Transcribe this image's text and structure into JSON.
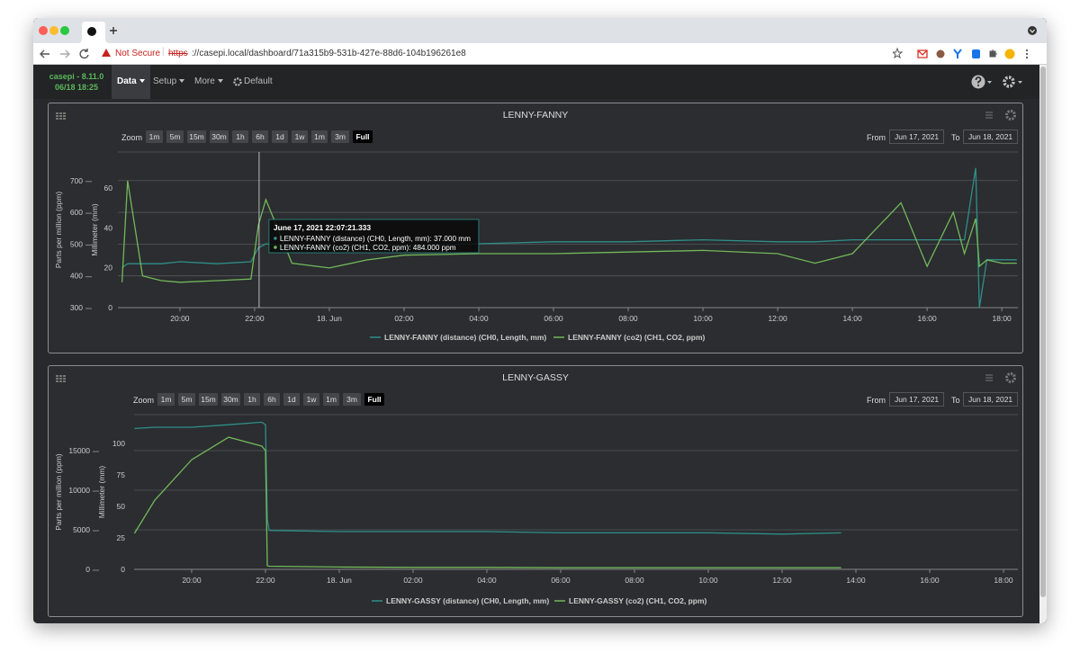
{
  "browser": {
    "not_secure": "Not Secure",
    "url_scheme": "https",
    "url_rest": "://casepi.local/dashboard/71a315b9-531b-427e-88d6-104b196261e8"
  },
  "navbar": {
    "brand": "casepi - 8.11.0",
    "datetime": "06/18 18:25",
    "menus": [
      "Data",
      "Setup",
      "More"
    ],
    "layout": "Default"
  },
  "panels": [
    {
      "zoom_label": "Zoom",
      "zoom_buttons": [
        "1m",
        "5m",
        "15m",
        "30m",
        "1h",
        "6h",
        "1d",
        "1w",
        "1m",
        "3m",
        "Full"
      ],
      "from_label": "From",
      "from": "Jun 17, 2021",
      "to_label": "To",
      "to": "Jun 18, 2021"
    },
    {
      "zoom_label": "Zoom",
      "zoom_buttons": [
        "1m",
        "5m",
        "15m",
        "30m",
        "1h",
        "6h",
        "1d",
        "1w",
        "1m",
        "3m",
        "Full"
      ],
      "from_label": "From",
      "from": "Jun 17, 2021",
      "to_label": "To",
      "to": "Jun 18, 2021"
    }
  ],
  "chart_data": [
    {
      "type": "line",
      "title": "LENNY-FANNY",
      "ylabel": "Millimeter (mm)",
      "y2label": "Parts per million (ppm)",
      "x": [
        18.45,
        18.6,
        19,
        19.5,
        20,
        21,
        21.9,
        22.1,
        22.3,
        23,
        24,
        25,
        26,
        28,
        30,
        32,
        34,
        36,
        37,
        38,
        39.3,
        40,
        40.7,
        41,
        41.3,
        41.4,
        41.6,
        42,
        42.4
      ],
      "xlim": [
        18.34,
        42.43
      ],
      "xticks": [
        {
          "value": 20,
          "label": "20:00"
        },
        {
          "value": 22,
          "label": "22:00"
        },
        {
          "value": 24,
          "label": "18. Jun"
        },
        {
          "value": 26,
          "label": "02:00"
        },
        {
          "value": 28,
          "label": "04:00"
        },
        {
          "value": 30,
          "label": "06:00"
        },
        {
          "value": 32,
          "label": "08:00"
        },
        {
          "value": 34,
          "label": "10:00"
        },
        {
          "value": 36,
          "label": "12:00"
        },
        {
          "value": 38,
          "label": "14:00"
        },
        {
          "value": 40,
          "label": "16:00"
        },
        {
          "value": 42,
          "label": "18:00"
        }
      ],
      "ylim": [
        0,
        78
      ],
      "yticks": [
        0,
        20,
        40,
        60
      ],
      "y2lim": [
        300,
        790
      ],
      "y2ticks": [
        300,
        400,
        500,
        600,
        700
      ],
      "grid": true,
      "series": [
        {
          "name": "LENNY-FANNY (distance) (CH0, Length, mm)",
          "color": "#2f8f88",
          "values": [
            20,
            22,
            22,
            22,
            23,
            22,
            23,
            30,
            32,
            30,
            30,
            31,
            31,
            32,
            33,
            33,
            34,
            33,
            33,
            34,
            34,
            34,
            34,
            34,
            70,
            0,
            24,
            24,
            24
          ]
        },
        {
          "name": "LENNY-FANNY (co2) (CH1, CO2, ppm)",
          "color": "#72b85a",
          "axis": "y2",
          "values": [
            380,
            700,
            400,
            385,
            380,
            385,
            390,
            560,
            640,
            440,
            425,
            450,
            465,
            470,
            470,
            475,
            480,
            470,
            440,
            470,
            630,
            430,
            600,
            470,
            580,
            430,
            450,
            440,
            440
          ]
        }
      ],
      "tooltip": {
        "x": 22.12,
        "title": "June 17, 2021 22:07:21.333",
        "lines": [
          "LENNY-FANNY (distance) (CH0, Length, mm): 37.000 mm",
          "LENNY-FANNY (co2) (CH1, CO2, ppm): 484.000 ppm"
        ]
      }
    },
    {
      "type": "line",
      "title": "LENNY-GASSY",
      "ylabel": "Millimeter (mm)",
      "y2label": "Parts per million (ppm)",
      "x": [
        18.45,
        19,
        20,
        21,
        21.9,
        22.0,
        22.05,
        22.1,
        24,
        26,
        28,
        30,
        32,
        34,
        36,
        37.6
      ],
      "xlim": [
        18.44,
        42.39
      ],
      "xticks": [
        {
          "value": 20,
          "label": "20:00"
        },
        {
          "value": 22,
          "label": "22:00"
        },
        {
          "value": 24,
          "label": "18. Jun"
        },
        {
          "value": 26,
          "label": "02:00"
        },
        {
          "value": 28,
          "label": "04:00"
        },
        {
          "value": 30,
          "label": "06:00"
        },
        {
          "value": 32,
          "label": "08:00"
        },
        {
          "value": 34,
          "label": "10:00"
        },
        {
          "value": 36,
          "label": "12:00"
        },
        {
          "value": 38,
          "label": "14:00"
        },
        {
          "value": 40,
          "label": "16:00"
        },
        {
          "value": 42,
          "label": "18:00"
        }
      ],
      "ylim": [
        0,
        123
      ],
      "yticks": [
        0,
        25,
        50,
        75,
        100
      ],
      "y2lim": [
        0,
        19550
      ],
      "y2ticks": [
        0,
        5000,
        10000,
        15000
      ],
      "grid": true,
      "series": [
        {
          "name": "LENNY-GASSY (distance) (CH0, Length, mm)",
          "color": "#2f8f88",
          "values": [
            112,
            113,
            113,
            115,
            117,
            115,
            40,
            31,
            30,
            30,
            30,
            29,
            29,
            29,
            28,
            29
          ]
        },
        {
          "name": "LENNY-GASSY (co2) (CH1, CO2, ppm)",
          "color": "#72b85a",
          "axis": "y2",
          "values": [
            4550,
            8750,
            13860,
            16700,
            15570,
            15000,
            450,
            400,
            300,
            250,
            250,
            200,
            200,
            200,
            200,
            200
          ]
        }
      ]
    }
  ]
}
